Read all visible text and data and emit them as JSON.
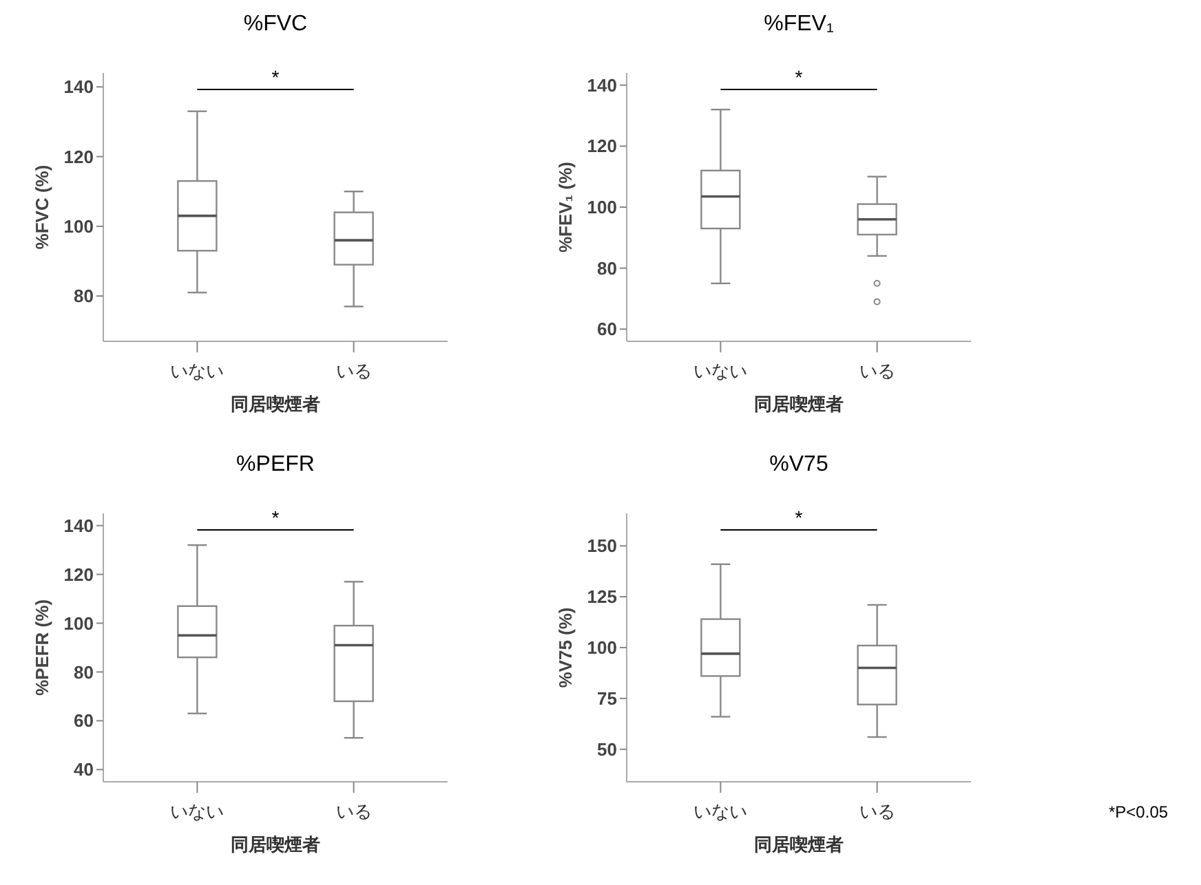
{
  "chart_data": [
    {
      "type": "box",
      "title": "%FVC",
      "xlabel": "同居喫煙者",
      "ylabel": "%FVC (%)",
      "categories": [
        "いない",
        "いる"
      ],
      "ylim": [
        67,
        144
      ],
      "yticks": [
        80,
        100,
        120,
        140
      ],
      "boxes": [
        {
          "low": 81,
          "q1": 93,
          "median": 103,
          "q3": 113,
          "high": 133
        },
        {
          "low": 77,
          "q1": 89,
          "median": 96,
          "q3": 104,
          "high": 110
        }
      ],
      "annotations": [
        "*"
      ]
    },
    {
      "type": "box",
      "title": "%FEV₁",
      "xlabel": "同居喫煙者",
      "ylabel": "%FEV₁ (%)",
      "categories": [
        "いない",
        "いる"
      ],
      "ylim": [
        56,
        144
      ],
      "yticks": [
        60,
        80,
        100,
        120,
        140
      ],
      "boxes": [
        {
          "low": 75,
          "q1": 93,
          "median": 103.5,
          "q3": 112,
          "high": 132
        },
        {
          "low": 84,
          "q1": 91,
          "median": 96,
          "q3": 101,
          "high": 110,
          "outliers": [
            75,
            69
          ]
        }
      ],
      "annotations": [
        "*"
      ]
    },
    {
      "type": "box",
      "title": "%PEFR",
      "xlabel": "同居喫煙者",
      "ylabel": "%PEFR (%)",
      "categories": [
        "いない",
        "いる"
      ],
      "ylim": [
        35,
        145
      ],
      "yticks": [
        40,
        60,
        80,
        100,
        120,
        140
      ],
      "boxes": [
        {
          "low": 63,
          "q1": 86,
          "median": 95,
          "q3": 107,
          "high": 132
        },
        {
          "low": 53,
          "q1": 68,
          "median": 91,
          "q3": 99,
          "high": 117
        }
      ],
      "annotations": [
        "*"
      ]
    },
    {
      "type": "box",
      "title": "%V75",
      "xlabel": "同居喫煙者",
      "ylabel": "%V75 (%)",
      "categories": [
        "いない",
        "いる"
      ],
      "ylim": [
        34,
        166
      ],
      "yticks": [
        50,
        75,
        100,
        125,
        150
      ],
      "boxes": [
        {
          "low": 66,
          "q1": 86,
          "median": 97,
          "q3": 114,
          "high": 141
        },
        {
          "low": 56,
          "q1": 72,
          "median": 90,
          "q3": 101,
          "high": 121
        }
      ],
      "annotations": [
        "*",
        "*P<0.05"
      ]
    }
  ]
}
